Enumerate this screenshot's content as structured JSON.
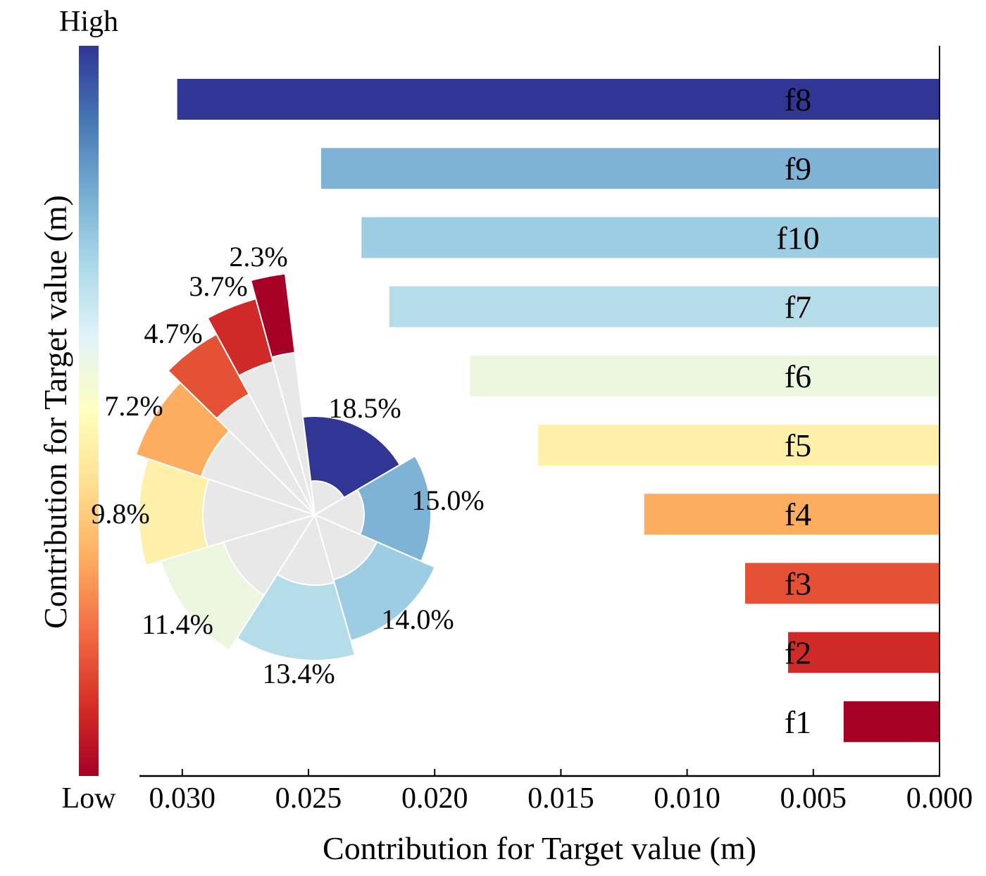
{
  "chart_data": [
    {
      "type": "bar",
      "orientation": "horizontal",
      "categories": [
        "f8",
        "f9",
        "f10",
        "f7",
        "f6",
        "f5",
        "f4",
        "f3",
        "f2",
        "f1"
      ],
      "values": [
        0.0302,
        0.0245,
        0.0229,
        0.0218,
        0.0186,
        0.0159,
        0.0117,
        0.0077,
        0.006,
        0.0038
      ],
      "colors": [
        "#313695",
        "#7eb3d6",
        "#9dcde2",
        "#b4dde9",
        "#edf7e0",
        "#fef0a8",
        "#fdad60",
        "#e45134",
        "#cf2a27",
        "#a50026"
      ],
      "xlabel": "Contribution for Target value (m)",
      "ylabel": "Contribution for Target value (m)",
      "xlim": [
        0.032,
        0.0
      ],
      "x_inverted": true,
      "xticks": [
        "0.030",
        "0.025",
        "0.020",
        "0.015",
        "0.010",
        "0.005",
        "0.000"
      ],
      "xtick_values": [
        0.03,
        0.025,
        0.02,
        0.015,
        0.01,
        0.005,
        0.0
      ],
      "grid": false,
      "colorbar": {
        "high_label": "High",
        "low_label": "Low",
        "colormap": "RdYlBu_r",
        "top_color": "#313695",
        "bottom_color": "#a50026"
      }
    },
    {
      "type": "pie",
      "style": "rose",
      "categories": [
        "f8",
        "f9",
        "f10",
        "f7",
        "f6",
        "f5",
        "f4",
        "f3",
        "f2",
        "f1"
      ],
      "values": [
        18.5,
        15.0,
        14.0,
        13.4,
        11.4,
        9.8,
        7.2,
        4.7,
        3.7,
        2.3
      ],
      "labels": [
        "18.5%",
        "15.0%",
        "14.0%",
        "13.4%",
        "11.4%",
        "9.8%",
        "7.2%",
        "4.7%",
        "3.7%",
        "2.3%"
      ],
      "background_color": "#e8e8e8"
    }
  ]
}
